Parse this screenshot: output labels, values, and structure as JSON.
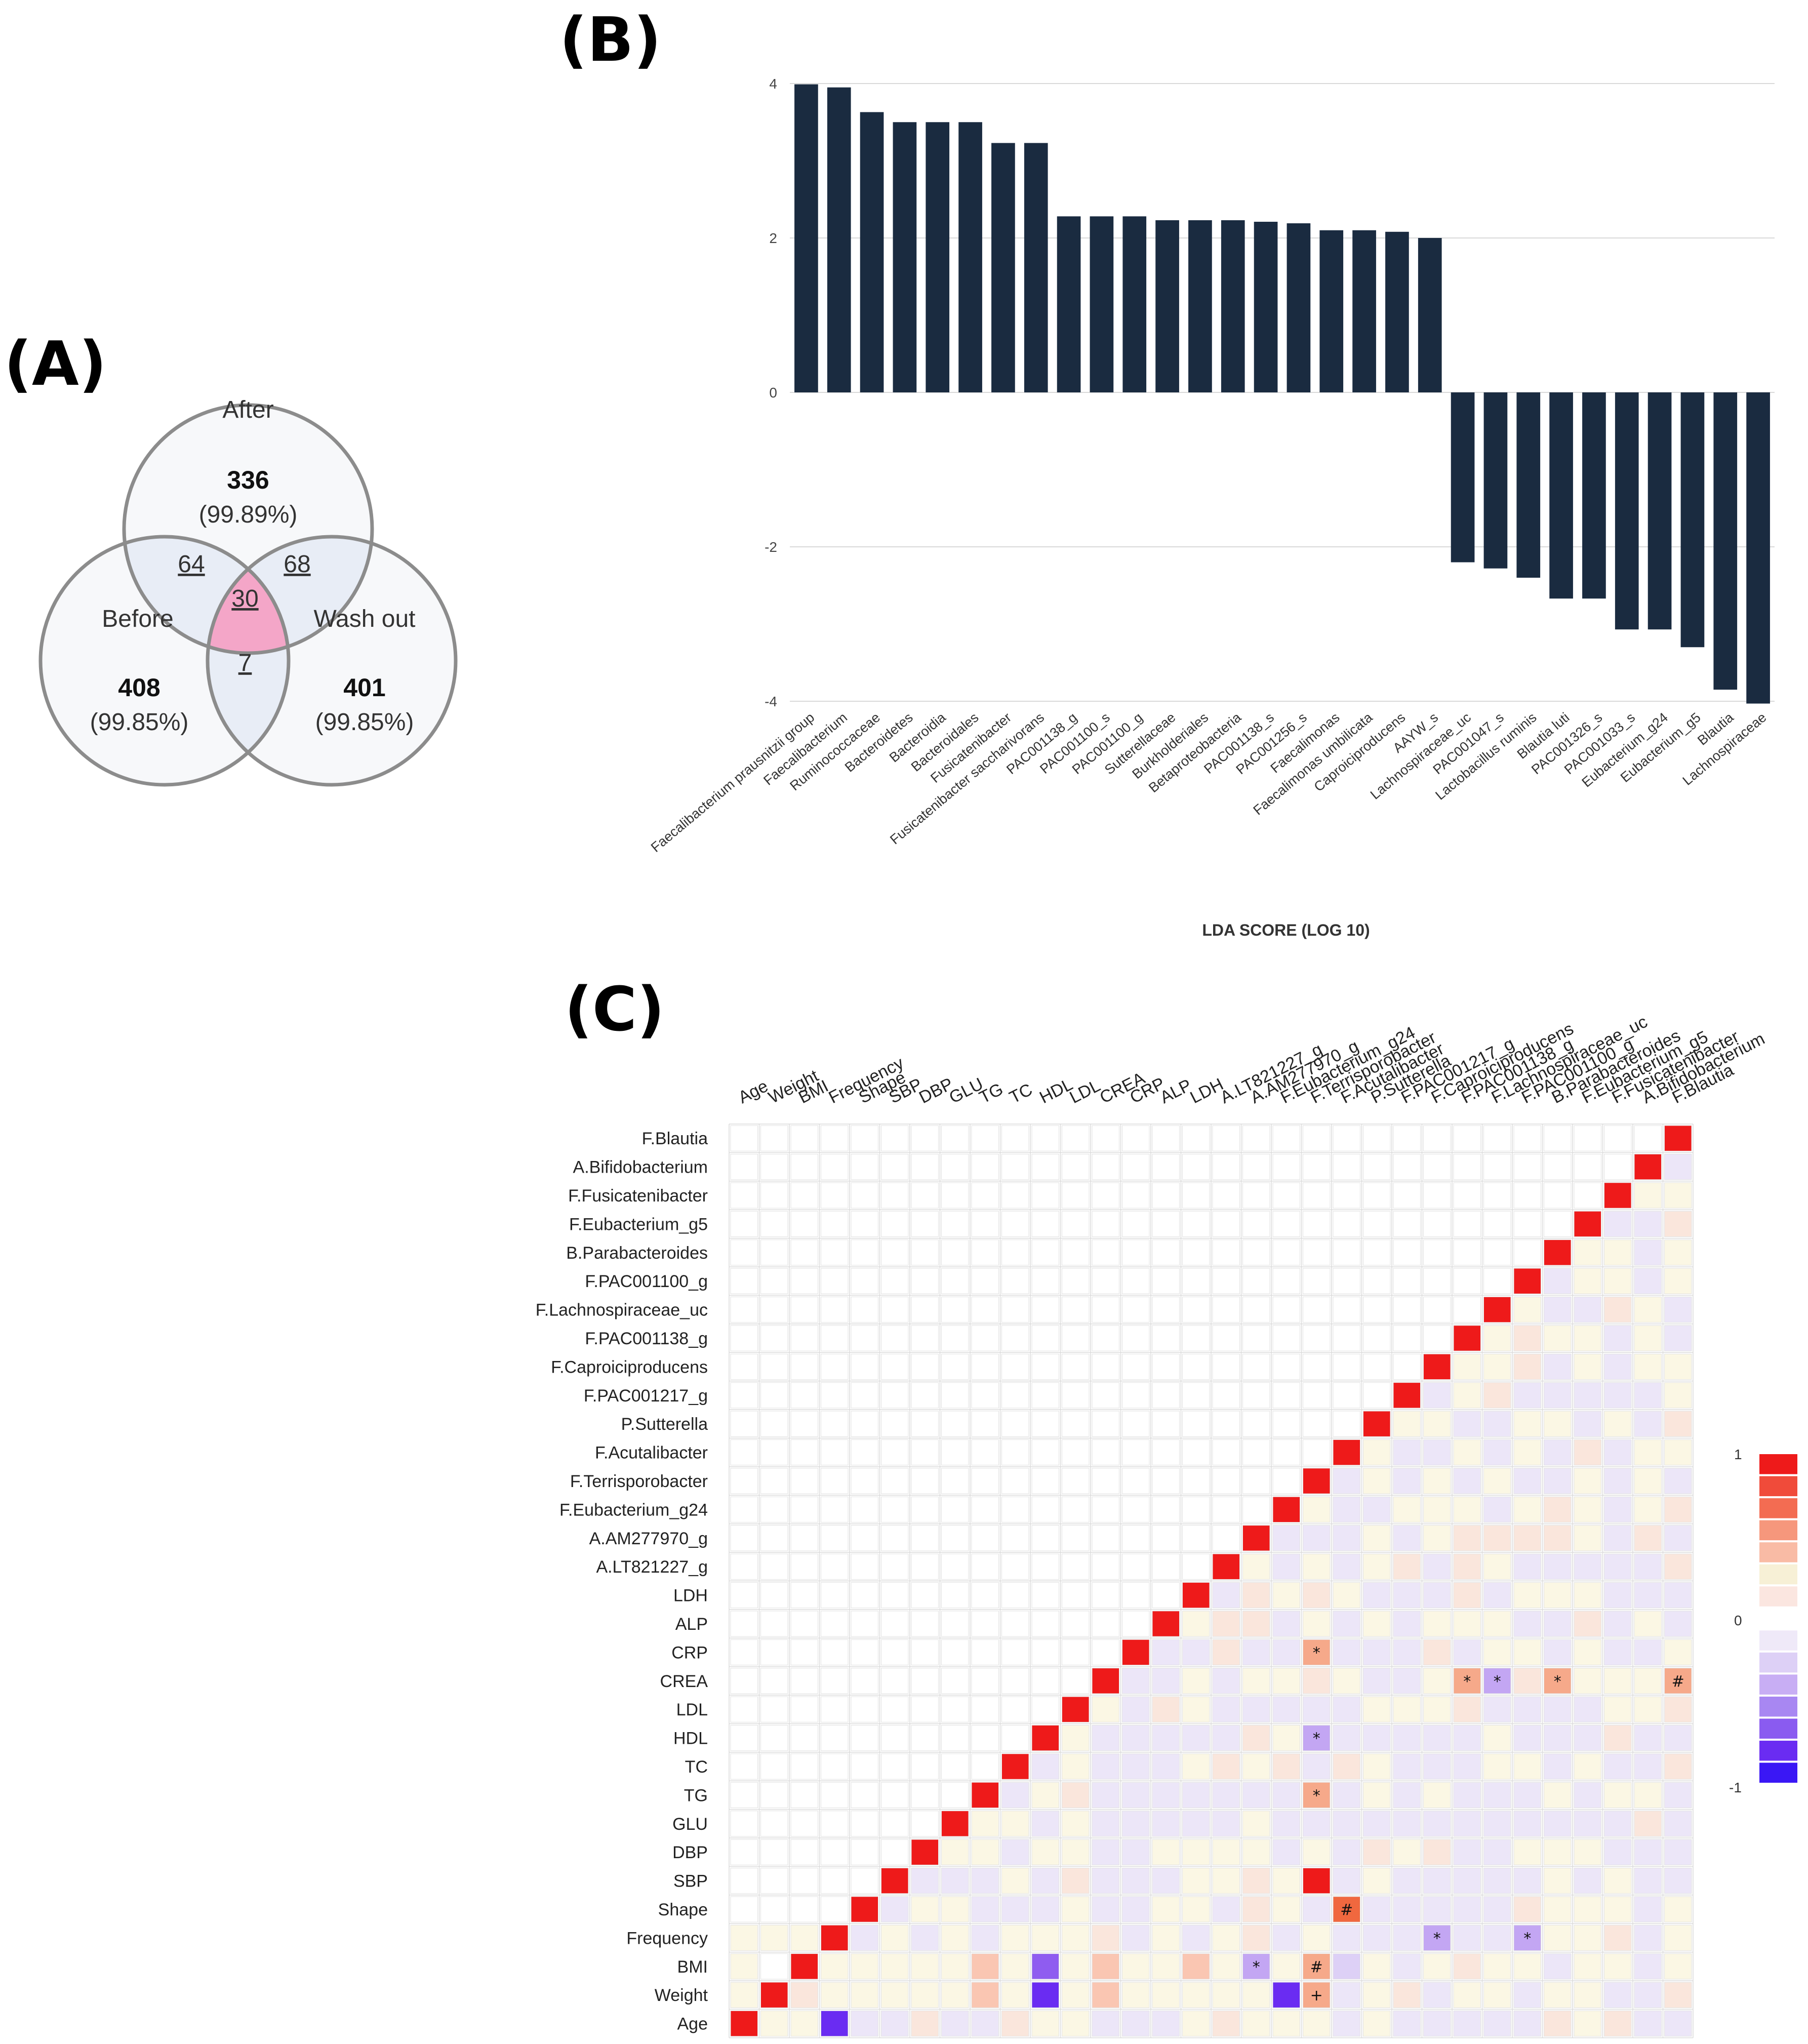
{
  "panels": {
    "a": "(A)",
    "b": "(B)",
    "c": "(C)"
  },
  "venn": {
    "sets": [
      {
        "name": "After",
        "count": "336",
        "pct": "(99.89%)"
      },
      {
        "name": "Before",
        "count": "408",
        "pct": "(99.85%)"
      },
      {
        "name": "Wash out",
        "count": "401",
        "pct": "(99.85%)"
      }
    ],
    "overlaps": {
      "after_before": "64",
      "after_washout": "68",
      "before_washout": "7",
      "all": "30"
    },
    "colors": {
      "outline": "#8c8c8c",
      "pair_fill": "#e8edf6",
      "center_fill": "#f4a6c8",
      "set_fill": "#f7f8fa"
    }
  },
  "chart_data": [
    {
      "type": "bar",
      "title": "",
      "xlabel": "LDA SCORE (LOG 10)",
      "ylabel": "",
      "ylim": [
        -4,
        4
      ],
      "yticks": [
        4,
        2,
        0,
        -2,
        -4
      ],
      "color": "#1a2b40",
      "categories": [
        "Faecalibacterium prausnitzii group",
        "Faecalibacterium",
        "Ruminococcaceae",
        "Bacteroidetes",
        "Bacteroidia",
        "Bacteroidales",
        "Fusicatenibacter",
        "Fusicatenibacter saccharivorans",
        "PAC001138_g",
        "PAC001100_s",
        "PAC001100_g",
        "Sutterellaceae",
        "Burkholderiales",
        "Betaproteobacteria",
        "PAC001138_s",
        "PAC001256_s",
        "Faecalimonas",
        "Faecalimonas umbilicata",
        "Caproiciproducens",
        "AAYW_s",
        "Lachnospiraceae_uc",
        "PAC001047_s",
        "Lactobacillus ruminis",
        "Blautia luti",
        "PAC001326_s",
        "PAC001033_s",
        "Eubacterium_g24",
        "Eubacterium_g5",
        "Blautia",
        "Lachnospiraceae"
      ],
      "values": [
        3.99,
        3.95,
        3.63,
        3.5,
        3.5,
        3.5,
        3.23,
        3.23,
        2.28,
        2.28,
        2.28,
        2.23,
        2.23,
        2.23,
        2.21,
        2.19,
        2.1,
        2.1,
        2.08,
        2.0,
        -2.2,
        -2.28,
        -2.4,
        -2.67,
        -2.67,
        -3.07,
        -3.07,
        -3.3,
        -3.85,
        -4.03
      ]
    },
    {
      "type": "heatmap",
      "title": "",
      "variables": [
        "Age",
        "Weight",
        "BMI",
        "Frequency",
        "Shape",
        "SBP",
        "DBP",
        "GLU",
        "TG",
        "TC",
        "HDL",
        "LDL",
        "CREA",
        "CRP",
        "ALP",
        "LDH",
        "A.LT821227_g",
        "A.AM277970_g",
        "F.Eubacterium_g24",
        "F.Terrisporobacter",
        "F.Acutalibacter",
        "P.Sutterella",
        "F.PAC001217_g",
        "F.Caproiciproducens",
        "F.PAC001138_g",
        "F.Lachnospiraceae_uc",
        "F.PAC001100_g",
        "B.Parabacteroides",
        "F.Eubacterium_g5",
        "F.Fusicatenibacter",
        "A.Bifidobacterium",
        "F.Blautia"
      ],
      "scale": {
        "max_label": "1",
        "mid_label": "0",
        "min_label": "-1",
        "range": [
          -1,
          1
        ]
      },
      "cells": [
        {
          "r": "Weight",
          "c": "Age",
          "v": 0.1
        },
        {
          "r": "Weight",
          "c": "BMI",
          "v": 0.2
        },
        {
          "r": "Weight",
          "c": "Frequency",
          "v": 0.1
        },
        {
          "r": "Weight",
          "c": "Shape",
          "v": 0.05
        },
        {
          "r": "Weight",
          "c": "SBP",
          "v": 0.1
        },
        {
          "r": "Weight",
          "c": "DBP",
          "v": 0.05
        },
        {
          "r": "Weight",
          "c": "GLU",
          "v": 0.1
        },
        {
          "r": "Weight",
          "c": "TG",
          "v": 0.4
        },
        {
          "r": "Weight",
          "c": "TC",
          "v": 0.1
        },
        {
          "r": "Weight",
          "c": "HDL",
          "v": -0.8
        },
        {
          "r": "Weight",
          "c": "LDL",
          "v": 0.1
        },
        {
          "r": "Weight",
          "c": "CREA",
          "v": 0.4
        },
        {
          "r": "Weight",
          "c": "CRP",
          "v": 0.1
        },
        {
          "r": "Weight",
          "c": "ALP",
          "v": 0.05
        },
        {
          "r": "Weight",
          "c": "LDH",
          "v": 0.1
        },
        {
          "r": "Weight",
          "c": "A.LT821227_g",
          "v": 0.05
        },
        {
          "r": "Weight",
          "c": "A.AM277970_g",
          "v": 0.05
        },
        {
          "r": "Weight",
          "c": "F.Eubacterium_g24",
          "v": -0.85
        },
        {
          "r": "Weight",
          "c": "F.Terrisporobacter",
          "v": 0.5,
          "mark": "+"
        },
        {
          "r": "Weight",
          "c": "F.Acutalibacter",
          "v": -0.1
        },
        {
          "r": "BMI",
          "c": "Age",
          "v": 0.1
        },
        {
          "r": "BMI",
          "c": "Frequency",
          "v": 0.1
        },
        {
          "r": "BMI",
          "c": "Shape",
          "v": 0.05
        },
        {
          "r": "BMI",
          "c": "SBP",
          "v": 0.1
        },
        {
          "r": "BMI",
          "c": "DBP",
          "v": 0.05
        },
        {
          "r": "BMI",
          "c": "GLU",
          "v": 0.1
        },
        {
          "r": "BMI",
          "c": "TG",
          "v": 0.4
        },
        {
          "r": "BMI",
          "c": "TC",
          "v": 0.1
        },
        {
          "r": "BMI",
          "c": "HDL",
          "v": -0.75
        },
        {
          "r": "BMI",
          "c": "LDL",
          "v": 0.1
        },
        {
          "r": "BMI",
          "c": "CREA",
          "v": 0.4
        },
        {
          "r": "BMI",
          "c": "CRP",
          "v": 0.1
        },
        {
          "r": "BMI",
          "c": "ALP",
          "v": 0.05
        },
        {
          "r": "BMI",
          "c": "LDH",
          "v": 0.4
        },
        {
          "r": "BMI",
          "c": "A.LT821227_g",
          "v": 0.05
        },
        {
          "r": "BMI",
          "c": "A.AM277970_g",
          "v": -0.5,
          "mark": "*"
        },
        {
          "r": "BMI",
          "c": "F.Eubacterium_g24",
          "v": 0.05
        },
        {
          "r": "BMI",
          "c": "F.Terrisporobacter",
          "v": 0.5,
          "mark": "#"
        },
        {
          "r": "BMI",
          "c": "F.Acutalibacter",
          "v": -0.2
        },
        {
          "r": "Frequency",
          "c": "Age",
          "v": 0.05
        },
        {
          "r": "Frequency",
          "c": "Weight",
          "v": 0.1
        },
        {
          "r": "Frequency",
          "c": "BMI",
          "v": 0.1
        },
        {
          "r": "Frequency",
          "c": "F.Caproiciproducens",
          "v": -0.5,
          "mark": "*"
        },
        {
          "r": "Frequency",
          "c": "F.PAC001100_g",
          "v": -0.5,
          "mark": "*"
        },
        {
          "r": "Shape",
          "c": "F.Acutalibacter",
          "v": 0.75,
          "mark": "#"
        },
        {
          "r": "SBP",
          "c": "F.Terrisporobacter",
          "v": 1
        },
        {
          "r": "TG",
          "c": "F.Terrisporobacter",
          "v": 0.5,
          "mark": "*"
        },
        {
          "r": "HDL",
          "c": "F.Terrisporobacter",
          "v": -0.5,
          "mark": "*"
        },
        {
          "r": "CRP",
          "c": "F.Terrisporobacter",
          "v": 0.5,
          "mark": "*"
        },
        {
          "r": "CREA",
          "c": "F.PAC001138_g",
          "v": 0.5,
          "mark": "*"
        },
        {
          "r": "CREA",
          "c": "F.Lachnospiraceae_uc",
          "v": -0.5,
          "mark": "*"
        },
        {
          "r": "CREA",
          "c": "B.Parabacteroides",
          "v": 0.5,
          "mark": "*"
        },
        {
          "r": "CREA",
          "c": "F.Blautia",
          "v": 0.5,
          "mark": "#"
        },
        {
          "r": "Age",
          "c": "Frequency",
          "v": -0.85
        }
      ]
    }
  ]
}
